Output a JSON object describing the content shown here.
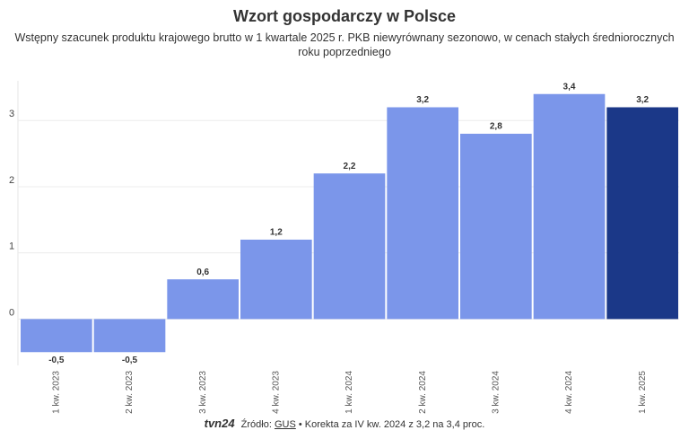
{
  "chart_data": {
    "type": "bar",
    "title": "Wzort gospodarczy w Polsce",
    "subtitle": "Wstępny szacunek produktu krajowego brutto w 1 kwartale 2025 r. PKB niewyrównany sezonowo, w cenach stałych średniorocznych roku poprzedniego",
    "categories": [
      "1 kw. 2023",
      "2 kw. 2023",
      "3 kw. 2023",
      "4 kw. 2023",
      "1 kw. 2024",
      "2 kw. 2024",
      "3 kw. 2024",
      "4 kw. 2024",
      "1 kw. 2025"
    ],
    "values": [
      -0.5,
      -0.5,
      0.6,
      1.2,
      2.2,
      3.2,
      2.8,
      3.4,
      3.2
    ],
    "value_labels": [
      "-0,5",
      "-0,5",
      "0,6",
      "1,2",
      "2,2",
      "3,2",
      "2,8",
      "3,4",
      "3,2"
    ],
    "colors": [
      "#7b96ea",
      "#7b96ea",
      "#7b96ea",
      "#7b96ea",
      "#7b96ea",
      "#7b96ea",
      "#7b96ea",
      "#7b96ea",
      "#1b3888"
    ],
    "ylim": [
      -0.7,
      3.6
    ],
    "yticks": [
      0,
      1,
      2,
      3
    ],
    "grid": true
  },
  "footer": {
    "logo": "tvn24",
    "source_prefix": "Źródło:",
    "source_link": "GUS",
    "note": "• Korekta za IV kw. 2024 z 3,2 na 3,4 proc."
  }
}
